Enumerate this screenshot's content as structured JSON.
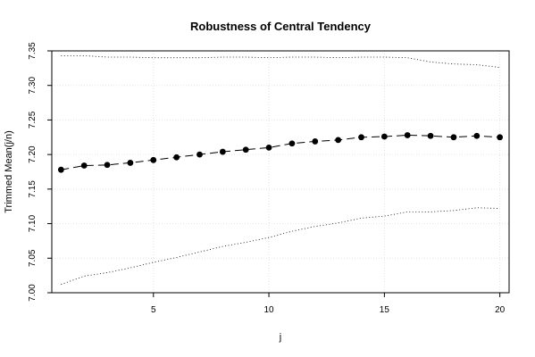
{
  "chart_data": {
    "type": "line",
    "title": "Robustness of Central Tendency",
    "xlabel": "j",
    "ylabel": "Trimmed Mean(j/n)",
    "xlim": [
      0.6,
      20.4
    ],
    "ylim": [
      7.0,
      7.35
    ],
    "xticks": [
      5,
      10,
      15,
      20
    ],
    "yticks": [
      7.0,
      7.05,
      7.1,
      7.15,
      7.2,
      7.25,
      7.3,
      7.35
    ],
    "grid": true,
    "x": [
      1,
      2,
      3,
      4,
      5,
      6,
      7,
      8,
      9,
      10,
      11,
      12,
      13,
      14,
      15,
      16,
      17,
      18,
      19,
      20
    ],
    "series": [
      {
        "style": "dashed-with-points",
        "values": [
          7.178,
          7.184,
          7.185,
          7.188,
          7.192,
          7.196,
          7.2,
          7.204,
          7.207,
          7.21,
          7.216,
          7.219,
          7.221,
          7.225,
          7.226,
          7.228,
          7.227,
          7.225,
          7.227,
          7.225
        ]
      },
      {
        "style": "dotted",
        "values": [
          7.343,
          7.343,
          7.341,
          7.341,
          7.34,
          7.34,
          7.34,
          7.341,
          7.341,
          7.34,
          7.341,
          7.341,
          7.34,
          7.341,
          7.341,
          7.34,
          7.334,
          7.331,
          7.33,
          7.326
        ]
      },
      {
        "style": "dotted",
        "values": [
          7.012,
          7.024,
          7.029,
          7.036,
          7.044,
          7.051,
          7.059,
          7.067,
          7.073,
          7.08,
          7.089,
          7.096,
          7.101,
          7.108,
          7.111,
          7.117,
          7.117,
          7.119,
          7.123,
          7.122
        ]
      }
    ]
  }
}
